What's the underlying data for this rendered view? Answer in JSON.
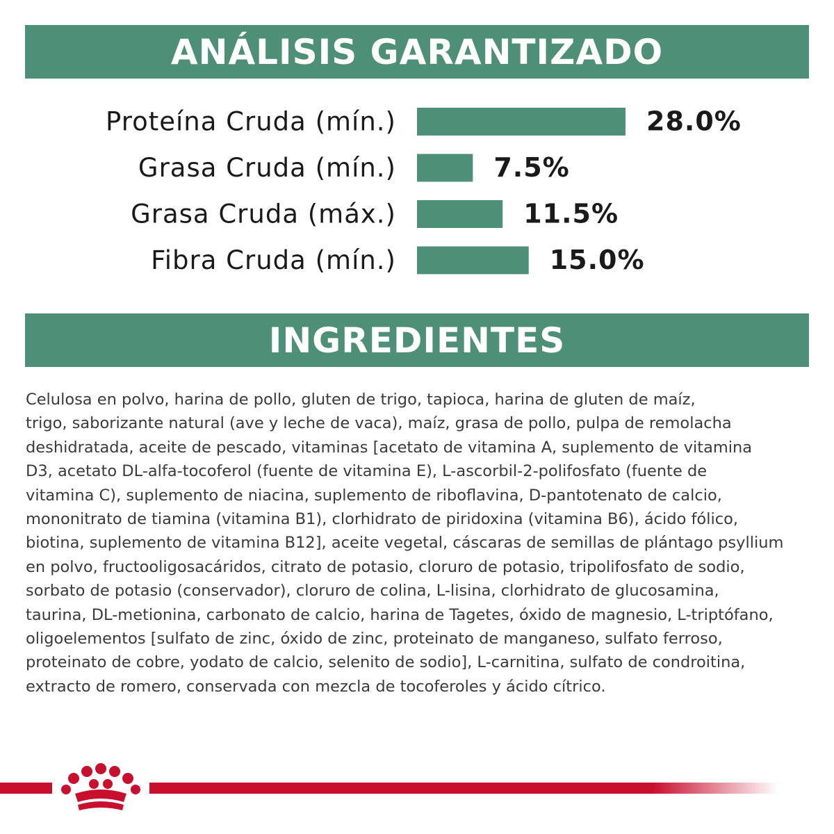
{
  "analysis_title": "ANÁLISIS GARANTIZADO",
  "chart_data": {
    "type": "bar",
    "orientation": "horizontal",
    "color": "#4e8f78",
    "categories": [
      "Proteína Cruda (mín.)",
      "Grasa Cruda (mín.)",
      "Grasa Cruda (máx.)",
      "Fibra Cruda (mín.)"
    ],
    "values": [
      28.0,
      7.5,
      11.5,
      15.0
    ],
    "value_labels": [
      "28.0%",
      "7.5%",
      "11.5%",
      "15.0%"
    ]
  },
  "ingredients": {
    "title": "INGREDIENTES",
    "lines": [
      "Celulosa en polvo, harina de pollo, gluten de trigo, tapioca, harina de gluten de maíz,",
      "trigo, saborizante natural (ave y leche de vaca), maíz, grasa de pollo, pulpa de remolacha",
      "deshidratada, aceite de pescado, vitaminas [acetato de vitamina A, suplemento de vitamina",
      "D3, acetato DL-alfa-tocoferol (fuente de vitamina E), L-ascorbil-2-polifosfato (fuente de",
      "vitamina C), suplemento de niacina, suplemento de riboflavina, D-pantotenato de calcio,",
      "mononitrato de tiamina (vitamina B1), clorhidrato de piridoxina (vitamina B6), ácido fólico,",
      "biotina, suplemento de vitamina B12], aceite vegetal, cáscaras de semillas de plántago psyllium",
      "en polvo, fructooligosacáridos, citrato de potasio, cloruro de potasio, tripolifosfato de sodio,",
      "sorbato de potasio (conservador), cloruro de colina, L-lisina, clorhidrato de glucosamina,",
      "taurina, DL-metionina, carbonato de calcio, harina de Tagetes, óxido de magnesio, L-triptófano,",
      "oligoelementos [sulfato de zinc, óxido de zinc, proteinato de manganeso, sulfato ferroso,",
      "proteinato de cobre, yodato de calcio, selenito de sodio], L-carnitina, sulfato de condroitina,",
      "extracto de romero, conservada con mezcla de tocoferoles y ácido cítrico."
    ]
  }
}
